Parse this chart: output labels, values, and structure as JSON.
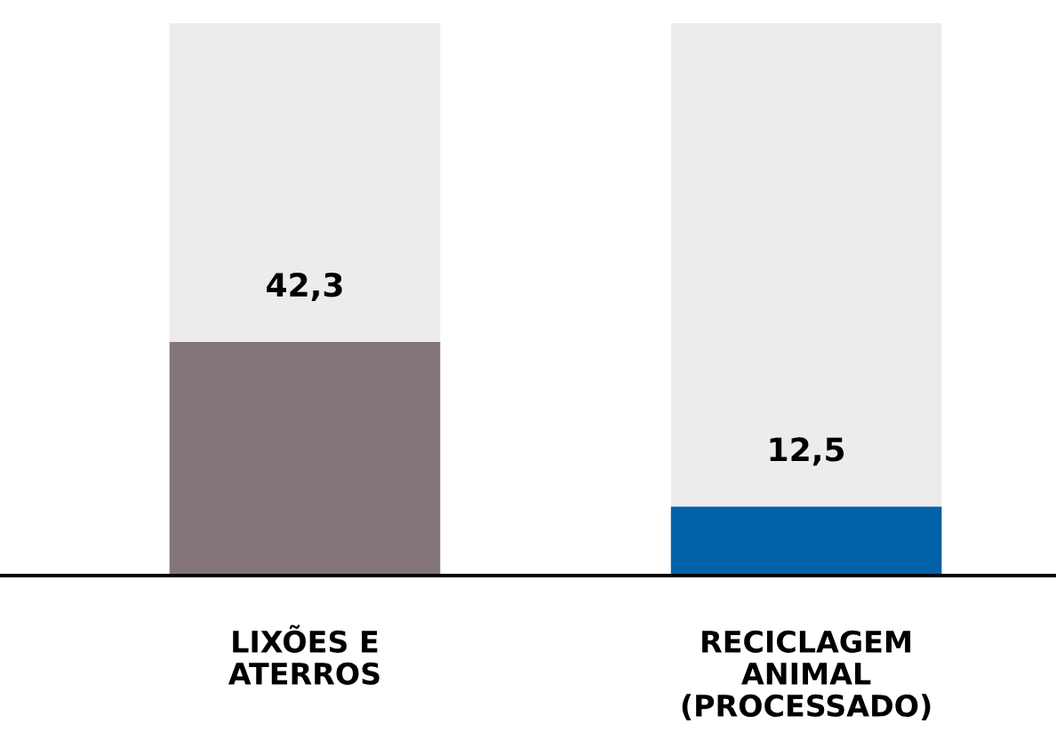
{
  "chart_data": {
    "type": "bar",
    "stacked": true,
    "categories": [
      "LIXÕES E\nATERROS",
      "RECICLAGEM\nANIMAL\n(PROCESSADO)"
    ],
    "series": [
      {
        "colors": [
          "#837579",
          "#0262a8"
        ],
        "values": [
          42.3,
          12.5
        ],
        "value_labels": [
          "42,3",
          "12,5"
        ]
      },
      {
        "color": "#ececec",
        "values": [
          57.7,
          87.5
        ]
      }
    ],
    "grid": false,
    "legend": false
  }
}
